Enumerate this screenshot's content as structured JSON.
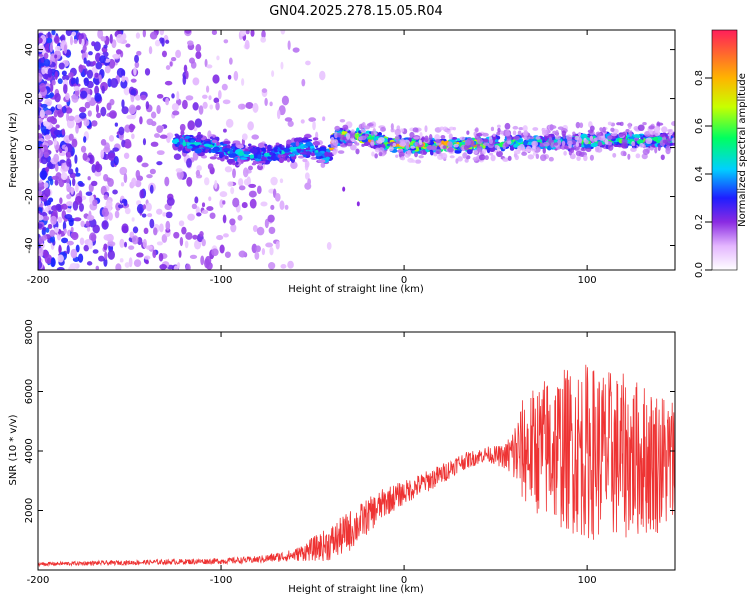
{
  "title": "GN04.2025.278.15.05.R04",
  "chart_data": [
    {
      "type": "heatmap",
      "xlabel": "Height of straight line (km)",
      "ylabel": "Frequency (Hz)",
      "xlim": [
        -200,
        148
      ],
      "ylim": [
        -50,
        48
      ],
      "xticks": [
        -200,
        -100,
        0,
        100
      ],
      "yticks": [
        -40,
        -20,
        0,
        20,
        40
      ],
      "colorbar": {
        "label": "Normalized spectral amplitude",
        "range": [
          0,
          1
        ],
        "ticks": [
          "0.0",
          "0.2",
          "0.4",
          "0.6",
          "0.8"
        ]
      },
      "ridge": [
        {
          "x": -120,
          "y": 2
        },
        {
          "x": -100,
          "y": 0
        },
        {
          "x": -90,
          "y": -3
        },
        {
          "x": -75,
          "y": -3
        },
        {
          "x": -50,
          "y": 0
        },
        {
          "x": -42,
          "y": -4
        },
        {
          "x": -38,
          "y": 4
        },
        {
          "x": -30,
          "y": 5
        },
        {
          "x": -20,
          "y": 4
        },
        {
          "x": -10,
          "y": 2
        },
        {
          "x": 0,
          "y": 1
        },
        {
          "x": 30,
          "y": 1
        },
        {
          "x": 50,
          "y": 2
        },
        {
          "x": 80,
          "y": 2
        },
        {
          "x": 110,
          "y": 3
        },
        {
          "x": 148,
          "y": 3
        }
      ],
      "outlier_points": [
        {
          "x": -33,
          "y": -17
        },
        {
          "x": -25,
          "y": -23
        }
      ]
    },
    {
      "type": "line",
      "xlabel": "Height of straight line (km)",
      "ylabel": "SNR (10 * v/v)",
      "xlim": [
        -200,
        148
      ],
      "ylim": [
        0,
        8000
      ],
      "xticks": [
        -200,
        -100,
        0,
        100
      ],
      "yticks": [
        2000,
        4000,
        6000,
        8000
      ],
      "color": "#ee3333",
      "series": [
        {
          "name": "SNR",
          "x": [
            -200,
            -150,
            -100,
            -80,
            -60,
            -40,
            -30,
            -20,
            -10,
            0,
            20,
            30,
            45,
            55,
            65,
            80,
            100,
            120,
            148
          ],
          "center": [
            200,
            250,
            300,
            350,
            500,
            900,
            1300,
            1800,
            2300,
            2600,
            3200,
            3600,
            3900,
            3800,
            4000,
            4100,
            4000,
            3800,
            3600
          ],
          "spread": [
            60,
            80,
            100,
            120,
            200,
            600,
            700,
            600,
            500,
            400,
            350,
            300,
            250,
            400,
            1800,
            2600,
            3000,
            2800,
            2300
          ]
        }
      ]
    }
  ]
}
